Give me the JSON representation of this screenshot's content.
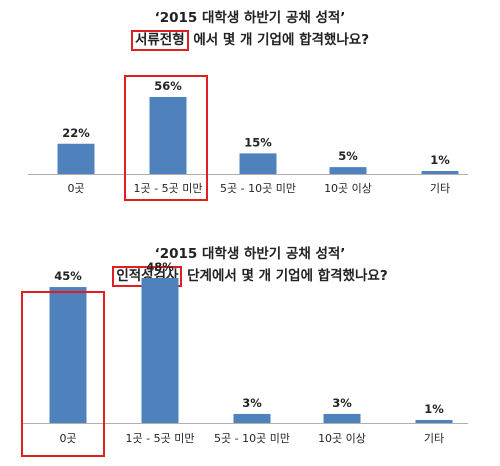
{
  "charts": [
    {
      "title_line1": "‘2015 대학생 하반기 공채 성적’",
      "title_highlight": "서류전형",
      "title_rest": " 에서 몇 개 기업에 합격했나요?"
    },
    {
      "title_line1": "‘2015 대학생 하반기 공채 성적’",
      "title_highlight": "인적성검사",
      "title_rest": " 단계에서 몇 개 기업에 합격했나요?"
    }
  ],
  "chart_data": [
    {
      "type": "bar",
      "title": "‘2015 대학생 하반기 공채 성적’ 서류전형 에서 몇 개 기업에 합격했나요?",
      "categories": [
        "0곳",
        "1곳 - 5곳 미만",
        "5곳 - 10곳 미만",
        "10곳 이상",
        "기타"
      ],
      "values": [
        22,
        56,
        15,
        5,
        1
      ],
      "value_labels": [
        "22%",
        "56%",
        "15%",
        "5%",
        "1%"
      ],
      "unit": "%",
      "ylim": [
        0,
        60
      ],
      "highlighted_category": "1곳 - 5곳 미만",
      "bar_color": "#4f81bd",
      "highlight_color": "#e02020",
      "grid": false
    },
    {
      "type": "bar",
      "title": "‘2015 대학생 하반기 공채 성적’ 인적성검사 단계에서 몇 개 기업에 합격했나요?",
      "categories": [
        "0곳",
        "1곳 - 5곳 미만",
        "5곳 - 10곳 미만",
        "10곳 이상",
        "기타"
      ],
      "values": [
        45,
        48,
        3,
        3,
        1
      ],
      "value_labels": [
        "45%",
        "48%",
        "3%",
        "3%",
        "1%"
      ],
      "unit": "%",
      "ylim": [
        0,
        60
      ],
      "highlighted_category": "0곳",
      "bar_color": "#4f81bd",
      "highlight_color": "#e02020",
      "grid": false
    }
  ]
}
